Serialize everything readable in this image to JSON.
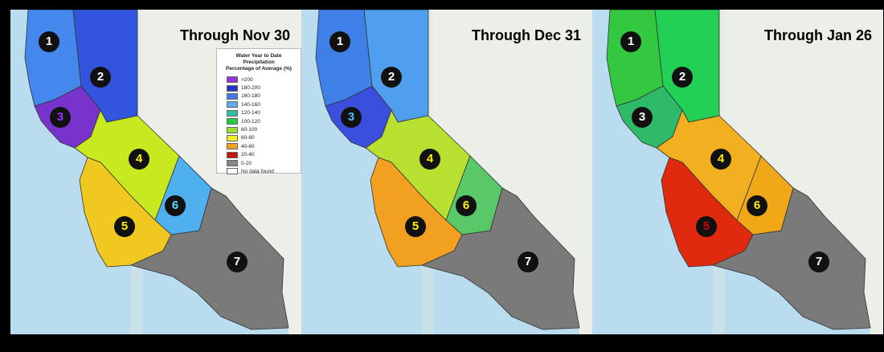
{
  "panels": [
    {
      "title": "Through Nov 30",
      "colors": {
        "north": "#4488ee",
        "northeast": "#3355dd",
        "bay": "#7733cc",
        "central": "#c8e820",
        "sierra": "#4fb0f0",
        "south": "#f0c820",
        "desert": "#7a7a7a"
      },
      "markers": [
        {
          "label": "1",
          "color": "#ffffff"
        },
        {
          "label": "2",
          "color": "#ffffff"
        },
        {
          "label": "3",
          "color": "#9933ff"
        },
        {
          "label": "4",
          "color": "#ffee00"
        },
        {
          "label": "5",
          "color": "#ffee00"
        },
        {
          "label": "6",
          "color": "#55ddff"
        },
        {
          "label": "7",
          "color": "#ffffff"
        }
      ]
    },
    {
      "title": "Through Dec 31",
      "colors": {
        "north": "#3f7fe8",
        "northeast": "#4f9fee",
        "bay": "#3a4fdd",
        "central": "#b8e030",
        "sierra": "#58c868",
        "south": "#f2a020",
        "desert": "#7a7a7a"
      },
      "markers": [
        {
          "label": "1",
          "color": "#ffffff"
        },
        {
          "label": "2",
          "color": "#ffffff"
        },
        {
          "label": "3",
          "color": "#55bbff"
        },
        {
          "label": "4",
          "color": "#ffee00"
        },
        {
          "label": "5",
          "color": "#ffee00"
        },
        {
          "label": "6",
          "color": "#ffee00"
        },
        {
          "label": "7",
          "color": "#ffffff"
        }
      ]
    },
    {
      "title": "Through Jan 26",
      "colors": {
        "north": "#33c840",
        "northeast": "#22d055",
        "bay": "#2fba6a",
        "central": "#f2b020",
        "sierra": "#f0a818",
        "south": "#e02a10",
        "desert": "#7a7a7a"
      },
      "markers": [
        {
          "label": "1",
          "color": "#ffffff"
        },
        {
          "label": "2",
          "color": "#ffffff"
        },
        {
          "label": "3",
          "color": "#ffffff"
        },
        {
          "label": "4",
          "color": "#ffee00"
        },
        {
          "label": "5",
          "color": "#cc0000"
        },
        {
          "label": "6",
          "color": "#ffee00"
        },
        {
          "label": "7",
          "color": "#ffffff"
        }
      ]
    }
  ],
  "legend": {
    "title_line1": "Water Year to Date Precipitation",
    "title_line2": "Percentage of Average (%)",
    "items": [
      {
        "label": ">200",
        "color": "#9933dd"
      },
      {
        "label": "180-200",
        "color": "#2233cc"
      },
      {
        "label": "160-180",
        "color": "#4477ee"
      },
      {
        "label": "140-160",
        "color": "#66aaf0"
      },
      {
        "label": "120-140",
        "color": "#33bbaa"
      },
      {
        "label": "100-120",
        "color": "#22cc44"
      },
      {
        "label": "80-100",
        "color": "#99e033"
      },
      {
        "label": "60-80",
        "color": "#eeee22"
      },
      {
        "label": "40-60",
        "color": "#f0a020"
      },
      {
        "label": "20-40",
        "color": "#cc1111"
      },
      {
        "label": "0-20",
        "color": "#888888"
      },
      {
        "label": "No data found",
        "color": "#ffffff"
      }
    ]
  }
}
